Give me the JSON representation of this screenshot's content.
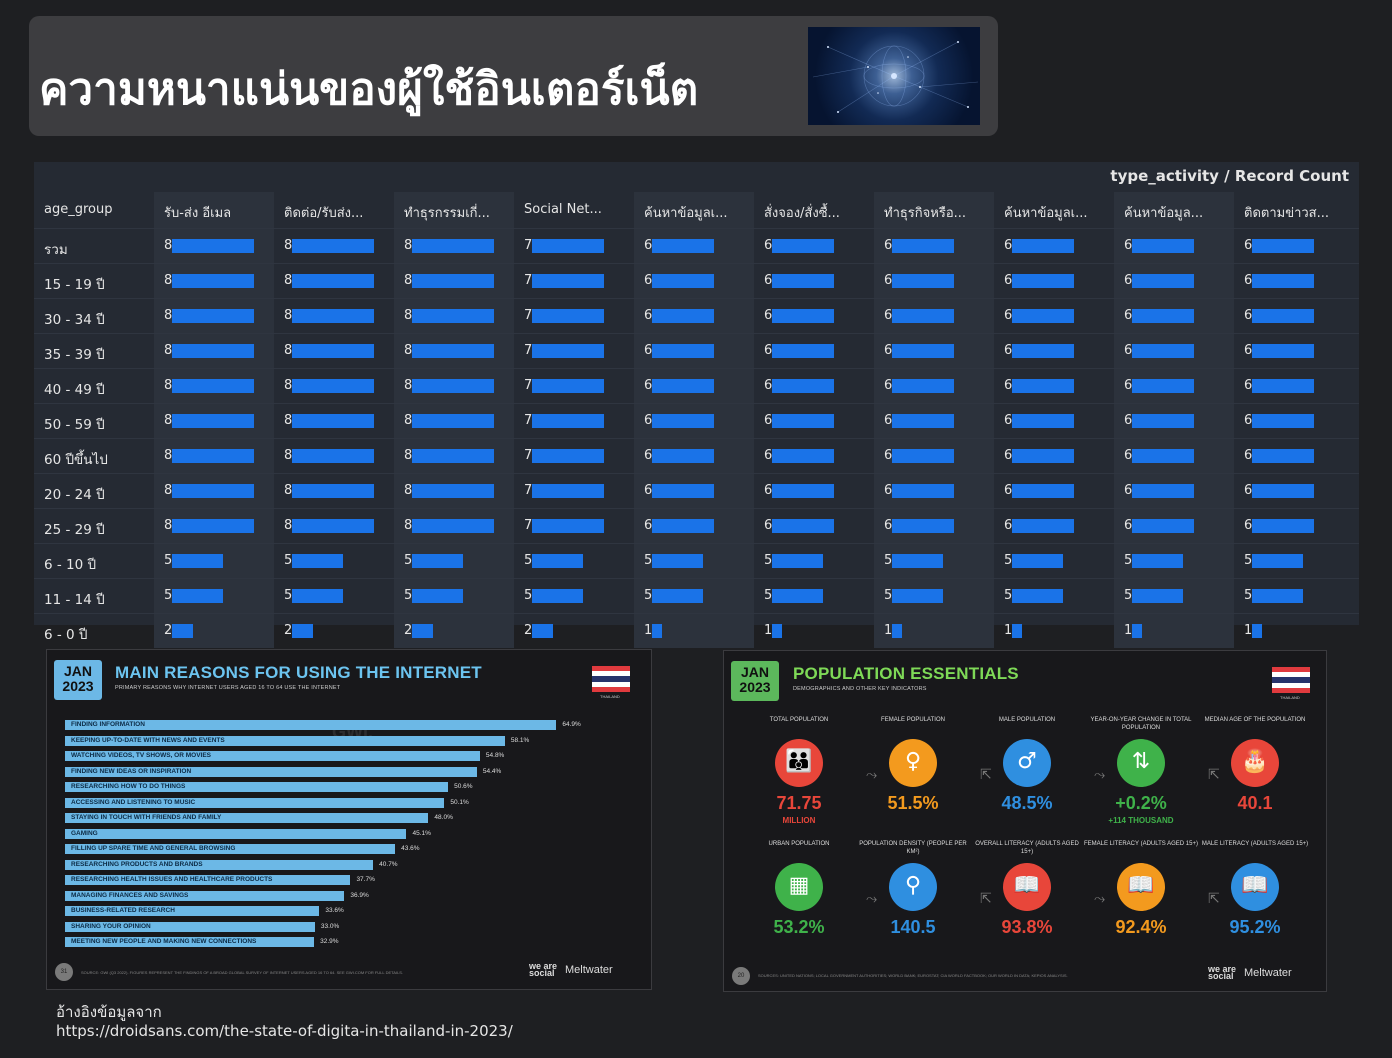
{
  "page": {
    "title": "ความหนาแน่นของผู้ใช้อินเตอร์เน็ต",
    "reference_label": "อ้างอิงข้อมูลจาก",
    "reference_url": "https://droidsans.com/the-state-of-digita-in-thailand-in-2023/"
  },
  "pivot_table": {
    "caption": "type_activity / Record Count",
    "row_header": "age_group",
    "columns": [
      "รับ-ส่ง อีเมล",
      "ติดต่อ/รับส่ง...",
      "ทำธุรกรรมเกี่...",
      "Social Net...",
      "ค้นหาข้อมูลเ...",
      "สั่งจอง/สั่งซื้...",
      "ทำธุรกิจหรือ...",
      "ค้นหาข้อมูลเ...",
      "ค้นหาข้อมูล...",
      "ติดตามข่าวส..."
    ],
    "max_value": 8,
    "rows": [
      {
        "label": "รวม",
        "values": [
          8,
          8,
          8,
          7,
          6,
          6,
          6,
          6,
          6,
          6
        ]
      },
      {
        "label": "15 - 19 ปี",
        "values": [
          8,
          8,
          8,
          7,
          6,
          6,
          6,
          6,
          6,
          6
        ]
      },
      {
        "label": "30 - 34 ปี",
        "values": [
          8,
          8,
          8,
          7,
          6,
          6,
          6,
          6,
          6,
          6
        ]
      },
      {
        "label": "35 - 39 ปี",
        "values": [
          8,
          8,
          8,
          7,
          6,
          6,
          6,
          6,
          6,
          6
        ]
      },
      {
        "label": "40 - 49 ปี",
        "values": [
          8,
          8,
          8,
          7,
          6,
          6,
          6,
          6,
          6,
          6
        ]
      },
      {
        "label": "50 - 59 ปี",
        "values": [
          8,
          8,
          8,
          7,
          6,
          6,
          6,
          6,
          6,
          6
        ]
      },
      {
        "label": "60 ปีขึ้นไป",
        "values": [
          8,
          8,
          8,
          7,
          6,
          6,
          6,
          6,
          6,
          6
        ]
      },
      {
        "label": "20 - 24 ปี",
        "values": [
          8,
          8,
          8,
          7,
          6,
          6,
          6,
          6,
          6,
          6
        ]
      },
      {
        "label": "25 - 29 ปี",
        "values": [
          8,
          8,
          8,
          7,
          6,
          6,
          6,
          6,
          6,
          6
        ]
      },
      {
        "label": "6 - 10 ปี",
        "values": [
          5,
          5,
          5,
          5,
          5,
          5,
          5,
          5,
          5,
          5
        ]
      },
      {
        "label": "11 - 14 ปี",
        "values": [
          5,
          5,
          5,
          5,
          5,
          5,
          5,
          5,
          5,
          5
        ]
      },
      {
        "label": "6 - 0 ปี",
        "values": [
          2,
          2,
          2,
          2,
          1,
          1,
          1,
          1,
          1,
          1
        ]
      }
    ],
    "bar_color": "#1a73e8"
  },
  "reasons_card": {
    "badge_month": "JAN",
    "badge_year": "2023",
    "title": "MAIN REASONS FOR USING THE INTERNET",
    "subtitle": "PRIMARY REASONS WHY INTERNET USERS AGED 16 TO 64 USE THE INTERNET",
    "flag_caption": "THAILAND",
    "watermark": "GWI.",
    "items": [
      {
        "label": "FINDING INFORMATION",
        "value": 64.9,
        "display": "64.9%"
      },
      {
        "label": "KEEPING UP-TO-DATE WITH NEWS AND EVENTS",
        "value": 58.1,
        "display": "58.1%"
      },
      {
        "label": "WATCHING VIDEOS, TV SHOWS, OR MOVIES",
        "value": 54.8,
        "display": "54.8%"
      },
      {
        "label": "FINDING NEW IDEAS OR INSPIRATION",
        "value": 54.4,
        "display": "54.4%"
      },
      {
        "label": "RESEARCHING HOW TO DO THINGS",
        "value": 50.6,
        "display": "50.6%"
      },
      {
        "label": "ACCESSING AND LISTENING TO MUSIC",
        "value": 50.1,
        "display": "50.1%"
      },
      {
        "label": "STAYING IN TOUCH WITH FRIENDS AND FAMILY",
        "value": 48.0,
        "display": "48.0%"
      },
      {
        "label": "GAMING",
        "value": 45.1,
        "display": "45.1%"
      },
      {
        "label": "FILLING UP SPARE TIME AND GENERAL BROWSING",
        "value": 43.6,
        "display": "43.6%"
      },
      {
        "label": "RESEARCHING PRODUCTS AND BRANDS",
        "value": 40.7,
        "display": "40.7%"
      },
      {
        "label": "RESEARCHING HEALTH ISSUES AND HEALTHCARE PRODUCTS",
        "value": 37.7,
        "display": "37.7%"
      },
      {
        "label": "MANAGING FINANCES AND SAVINGS",
        "value": 36.9,
        "display": "36.9%"
      },
      {
        "label": "BUSINESS-RELATED RESEARCH",
        "value": 33.6,
        "display": "33.6%"
      },
      {
        "label": "SHARING YOUR OPINION",
        "value": 33.0,
        "display": "33.0%"
      },
      {
        "label": "MEETING NEW PEOPLE AND MAKING NEW CONNECTIONS",
        "value": 32.9,
        "display": "32.9%"
      }
    ],
    "max_value": 70,
    "page_number": "31",
    "source_note": "SOURCE: GWI (Q3 2022). FIGURES REPRESENT THE FINDINGS OF A BROAD GLOBAL SURVEY OF INTERNET USERS AGED 16 TO 64. SEE GWI.COM FOR FULL DETAILS.",
    "brand_was": "we are social",
    "brand_mw": "Meltwater",
    "title_color": "#6cc4f0",
    "badge_color": "#6cb8e6"
  },
  "population_card": {
    "badge_month": "JAN",
    "badge_year": "2023",
    "title": "POPULATION ESSENTIALS",
    "subtitle": "DEMOGRAPHICS AND OTHER KEY INDICATORS",
    "flag_caption": "THAILAND",
    "stats_top": [
      {
        "caption": "TOTAL POPULATION",
        "value": "71.75",
        "unit": "MILLION",
        "color": "#e8463a",
        "icon": "people-icon",
        "glyph": "👪"
      },
      {
        "caption": "FEMALE POPULATION",
        "value": "51.5%",
        "unit": "",
        "color": "#f39a1e",
        "icon": "female-icon",
        "glyph": "♀"
      },
      {
        "caption": "MALE POPULATION",
        "value": "48.5%",
        "unit": "",
        "color": "#2f8fe0",
        "icon": "male-icon",
        "glyph": "♂"
      },
      {
        "caption": "YEAR-ON-YEAR CHANGE IN TOTAL POPULATION",
        "value": "+0.2%",
        "unit": "+114 THOUSAND",
        "color": "#3fb24a",
        "icon": "change-arrows-icon",
        "glyph": "⇅"
      },
      {
        "caption": "MEDIAN AGE OF THE POPULATION",
        "value": "40.1",
        "unit": "",
        "color": "#e8463a",
        "icon": "cake-icon",
        "glyph": "🎂"
      }
    ],
    "stats_bottom": [
      {
        "caption": "URBAN POPULATION",
        "value": "53.2%",
        "unit": "",
        "color": "#3fb24a",
        "icon": "building-icon",
        "glyph": "▦"
      },
      {
        "caption": "POPULATION DENSITY (PEOPLE PER KM²)",
        "value": "140.5",
        "unit": "",
        "color": "#2f8fe0",
        "icon": "location-pin-icon",
        "glyph": "⚲"
      },
      {
        "caption": "OVERALL LITERACY (ADULTS AGED 15+)",
        "value": "93.8%",
        "unit": "",
        "color": "#e8463a",
        "icon": "book-icon",
        "glyph": "📖"
      },
      {
        "caption": "FEMALE LITERACY (ADULTS AGED 15+)",
        "value": "92.4%",
        "unit": "",
        "color": "#f39a1e",
        "icon": "book-icon",
        "glyph": "📖"
      },
      {
        "caption": "MALE LITERACY (ADULTS AGED 15+)",
        "value": "95.2%",
        "unit": "",
        "color": "#2f8fe0",
        "icon": "book-icon",
        "glyph": "📖"
      }
    ],
    "page_number": "20",
    "source_note": "SOURCES: UNITED NATIONS; LOCAL GOVERNMENT AUTHORITIES; WORLD BANK; EUROSTAT; CIA WORLD FACTBOOK; OUR WORLD IN DATA; KEPIOS ANALYSIS.",
    "brand_was": "we are social",
    "brand_mw": "Meltwater",
    "title_color": "#7ed957",
    "badge_color": "#5cb85c"
  }
}
